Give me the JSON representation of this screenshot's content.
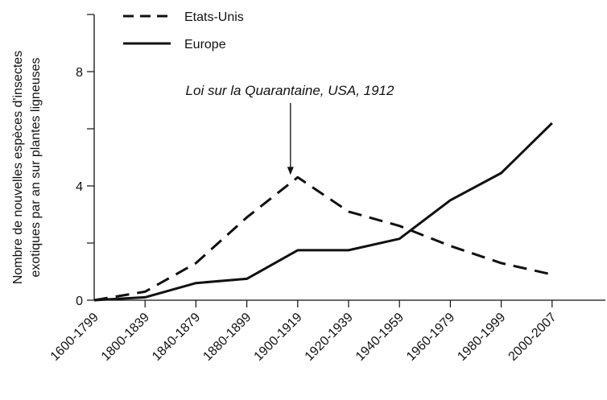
{
  "chart_data": {
    "type": "line",
    "title": "",
    "xlabel": "",
    "ylabel": "Nombre de nouvelles espèces d'insectes exotiques par an sur plantes ligneuses",
    "ylabel_lines": [
      "Nombre de nouvelles espèces d'insectes",
      "exotiques par an sur plantes ligneuses"
    ],
    "categories": [
      "1600-1799",
      "1800-1839",
      "1840-1879",
      "1880-1899",
      "1900-1919",
      "1920-1939",
      "1940-1959",
      "1960-1979",
      "1980-1999",
      "2000-2007"
    ],
    "y_ticks": [
      0,
      4,
      8
    ],
    "ylim": [
      0,
      10
    ],
    "grid": false,
    "legend_position": "top-left",
    "series": [
      {
        "name": "Etats-Unis",
        "style": "dashed",
        "color": "#111111",
        "values": [
          0,
          0.3,
          1.3,
          2.9,
          4.3,
          3.1,
          2.6,
          1.9,
          1.3,
          0.9
        ]
      },
      {
        "name": "Europe",
        "style": "solid",
        "color": "#111111",
        "values": [
          0,
          0.1,
          0.6,
          0.75,
          1.75,
          1.75,
          2.15,
          3.5,
          4.45,
          6.2
        ]
      }
    ],
    "annotations": [
      {
        "text": "Loi sur la Quarantaine, USA, 1912",
        "category": "1900-1919",
        "points_to_y": 4.3
      }
    ]
  }
}
